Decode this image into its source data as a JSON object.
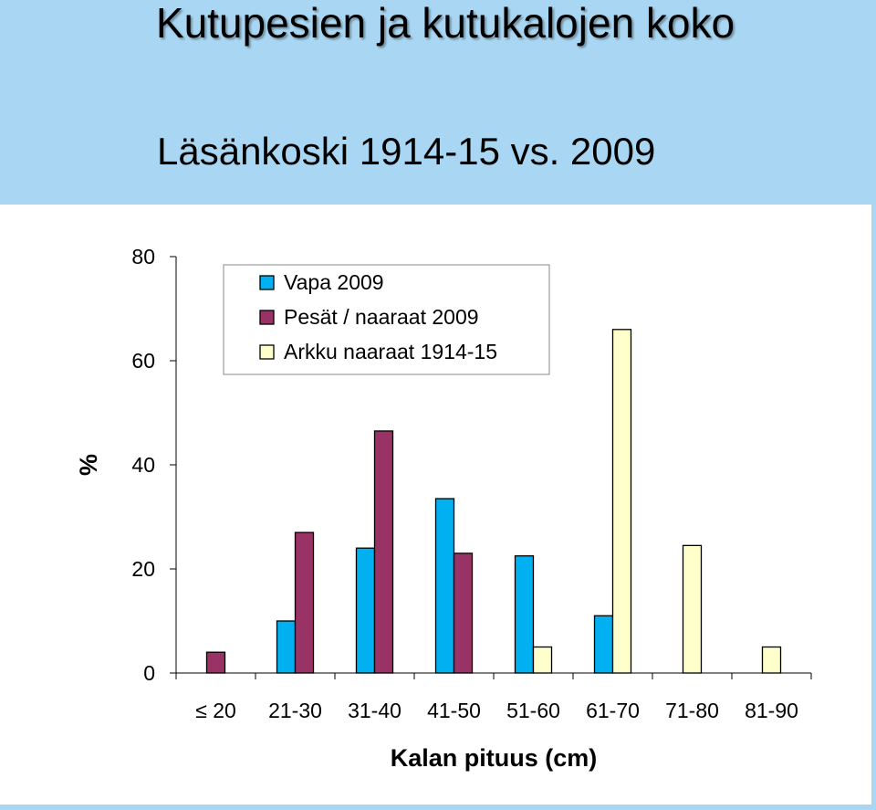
{
  "slide": {
    "title": "Kutupesien ja kutukalojen koko",
    "subtitle": "Läsänkoski 1914-15 vs. 2009"
  },
  "chart_data": {
    "type": "bar",
    "categories": [
      "≤ 20",
      "21-30",
      "31-40",
      "41-50",
      "51-60",
      "61-70",
      "71-80",
      "81-90"
    ],
    "xlabel": "Kalan pituus (cm)",
    "ylabel": "%",
    "ylim": [
      0,
      80
    ],
    "yticks": [
      0,
      20,
      40,
      60,
      80
    ],
    "grid": false,
    "legend_position": "top-left",
    "series": [
      {
        "name": "Vapa 2009",
        "color": "#00b0f0",
        "values": [
          null,
          10,
          24,
          33.5,
          22.5,
          11,
          null,
          null
        ]
      },
      {
        "name": "Pesät / naaraat 2009",
        "color": "#993366",
        "values": [
          4,
          27,
          46.5,
          23,
          null,
          null,
          null,
          null
        ]
      },
      {
        "name": "Arkku naaraat 1914-15",
        "color": "#ffffcc",
        "values": [
          null,
          null,
          null,
          null,
          5,
          66,
          24.5,
          5
        ]
      }
    ]
  }
}
